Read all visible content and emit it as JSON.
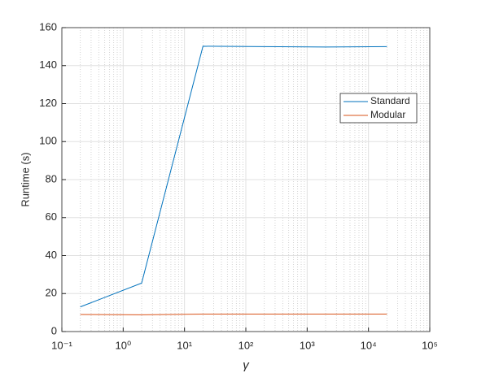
{
  "chart_data": {
    "type": "line",
    "x_label": "γ",
    "y_label": "Runtime (s)",
    "x": [
      0.2,
      2,
      20,
      200,
      2000,
      20000
    ],
    "series": [
      {
        "name": "Standard",
        "color": "#0072bd",
        "values": [
          13,
          25.5,
          150.2,
          150,
          149.8,
          150
        ]
      },
      {
        "name": "Modular",
        "color": "#d95319",
        "values": [
          9,
          8.8,
          9.2,
          9.2,
          9.2,
          9.2
        ]
      }
    ],
    "x_log": true,
    "xlim": [
      0.1,
      100000
    ],
    "xticks": [
      {
        "value": 0.1,
        "label": "10⁻¹"
      },
      {
        "value": 1,
        "label": "10⁰"
      },
      {
        "value": 10,
        "label": "10¹"
      },
      {
        "value": 100,
        "label": "10²"
      },
      {
        "value": 1000,
        "label": "10³"
      },
      {
        "value": 10000,
        "label": "10⁴"
      },
      {
        "value": 100000,
        "label": "10⁵"
      }
    ],
    "ylim": [
      0,
      160
    ],
    "yticks": [
      0,
      20,
      40,
      60,
      80,
      100,
      120,
      140,
      160
    ],
    "grid": true,
    "minor_grid": true,
    "legend_position": "northeast"
  }
}
